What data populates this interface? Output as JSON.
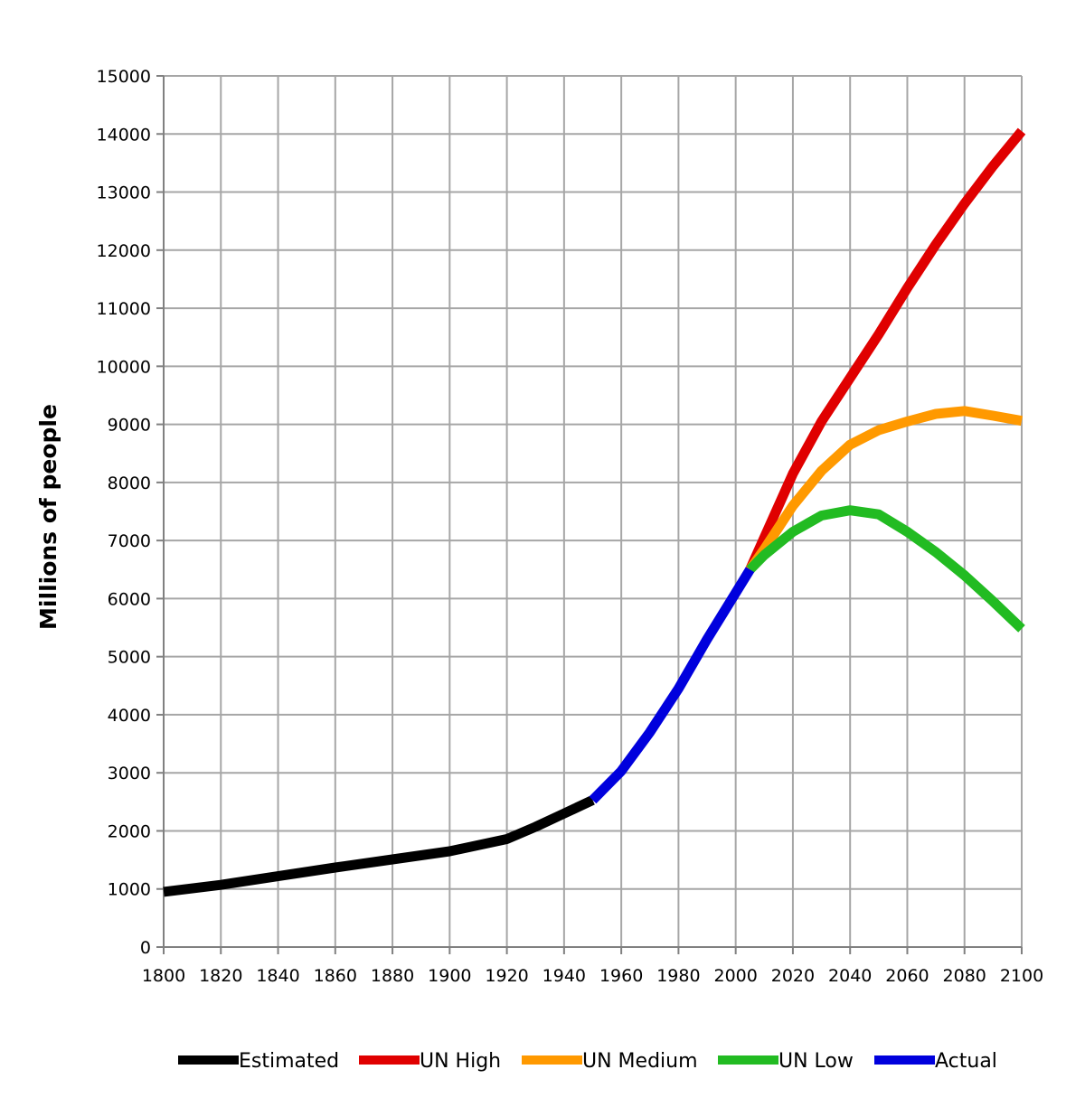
{
  "chart_data": {
    "type": "line",
    "title": "",
    "xlabel": "",
    "ylabel": "Millions of people",
    "xlim": [
      1800,
      2100
    ],
    "ylim": [
      0,
      15000
    ],
    "x_ticks": [
      1800,
      1820,
      1840,
      1860,
      1880,
      1900,
      1920,
      1940,
      1960,
      1980,
      2000,
      2020,
      2040,
      2060,
      2080,
      2100
    ],
    "y_ticks": [
      0,
      1000,
      2000,
      3000,
      4000,
      5000,
      6000,
      7000,
      8000,
      9000,
      10000,
      11000,
      12000,
      13000,
      14000,
      15000
    ],
    "grid": true,
    "legend_position": "bottom",
    "series": [
      {
        "name": "Estimated",
        "color": "#000000",
        "points": [
          [
            1800,
            950
          ],
          [
            1820,
            1070
          ],
          [
            1840,
            1220
          ],
          [
            1860,
            1370
          ],
          [
            1880,
            1510
          ],
          [
            1900,
            1650
          ],
          [
            1920,
            1860
          ],
          [
            1930,
            2070
          ],
          [
            1940,
            2300
          ],
          [
            1950,
            2530
          ]
        ]
      },
      {
        "name": "UN High",
        "color": "#e00000",
        "points": [
          [
            2005,
            6500
          ],
          [
            2010,
            7050
          ],
          [
            2020,
            8150
          ],
          [
            2030,
            9050
          ],
          [
            2040,
            9800
          ],
          [
            2050,
            10550
          ],
          [
            2060,
            11350
          ],
          [
            2070,
            12100
          ],
          [
            2080,
            12800
          ],
          [
            2090,
            13450
          ],
          [
            2100,
            14050
          ]
        ]
      },
      {
        "name": "UN Medium",
        "color": "#ff9900",
        "points": [
          [
            2005,
            6500
          ],
          [
            2010,
            6850
          ],
          [
            2020,
            7600
          ],
          [
            2030,
            8200
          ],
          [
            2040,
            8650
          ],
          [
            2050,
            8900
          ],
          [
            2060,
            9050
          ],
          [
            2070,
            9180
          ],
          [
            2080,
            9230
          ],
          [
            2090,
            9150
          ],
          [
            2100,
            9060
          ]
        ]
      },
      {
        "name": "UN Low",
        "color": "#22bb22",
        "points": [
          [
            2005,
            6500
          ],
          [
            2010,
            6750
          ],
          [
            2020,
            7150
          ],
          [
            2030,
            7430
          ],
          [
            2040,
            7520
          ],
          [
            2050,
            7450
          ],
          [
            2060,
            7150
          ],
          [
            2070,
            6800
          ],
          [
            2080,
            6400
          ],
          [
            2090,
            5950
          ],
          [
            2100,
            5480
          ]
        ]
      },
      {
        "name": "Actual",
        "color": "#0000dd",
        "points": [
          [
            1950,
            2530
          ],
          [
            1960,
            3030
          ],
          [
            1970,
            3700
          ],
          [
            1980,
            4450
          ],
          [
            1990,
            5300
          ],
          [
            2000,
            6100
          ],
          [
            2005,
            6500
          ]
        ]
      }
    ]
  }
}
